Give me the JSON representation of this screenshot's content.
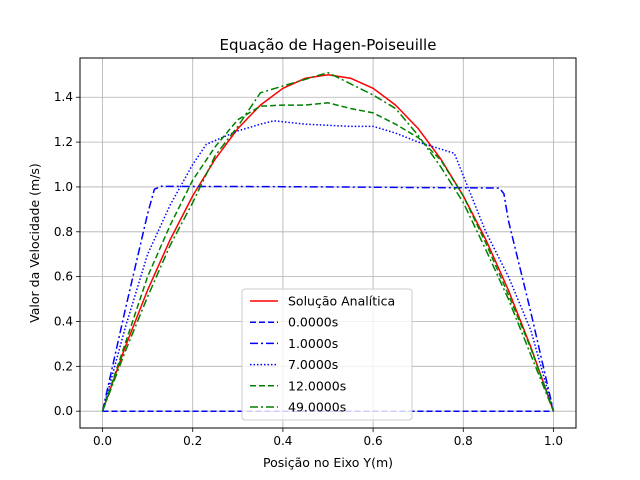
{
  "chart_data": {
    "type": "line",
    "title": "Equação de Hagen-Poiseuille",
    "xlabel": "Posição no Eixo Y(m)",
    "ylabel": "Valor da Velocidade (m/s)",
    "xlim": [
      -0.05,
      1.05
    ],
    "ylim": [
      -0.075,
      1.575
    ],
    "xticks": [
      "0.0",
      "0.2",
      "0.4",
      "0.6",
      "0.8",
      "1.0"
    ],
    "xtick_values": [
      0.0,
      0.2,
      0.4,
      0.6,
      0.8,
      1.0
    ],
    "yticks": [
      "0.0",
      "0.2",
      "0.4",
      "0.6",
      "0.8",
      "1.0",
      "1.2",
      "1.4"
    ],
    "ytick_values": [
      0.0,
      0.2,
      0.4,
      0.6,
      0.8,
      1.0,
      1.2,
      1.4
    ],
    "grid": true,
    "legend_position": "lower-center",
    "series": [
      {
        "name": "Solução Analítica",
        "color": "#ff0000",
        "style": "solid",
        "x": [
          0.0,
          0.05,
          0.1,
          0.15,
          0.2,
          0.25,
          0.3,
          0.35,
          0.4,
          0.45,
          0.5,
          0.55,
          0.6,
          0.65,
          0.7,
          0.75,
          0.8,
          0.85,
          0.9,
          0.95,
          1.0
        ],
        "y": [
          0.0,
          0.285,
          0.54,
          0.765,
          0.96,
          1.125,
          1.26,
          1.365,
          1.44,
          1.485,
          1.5,
          1.485,
          1.44,
          1.365,
          1.26,
          1.125,
          0.96,
          0.765,
          0.54,
          0.285,
          0.0
        ]
      },
      {
        "name": "0.0000s",
        "color": "#0000ff",
        "style": "dashed",
        "x": [
          0.0,
          1.0
        ],
        "y": [
          0.0,
          0.0
        ]
      },
      {
        "name": "1.0000s",
        "color": "#0000ff",
        "style": "dashdot",
        "x": [
          0.0,
          0.05,
          0.1,
          0.115,
          0.13,
          0.2,
          0.3,
          0.4,
          0.5,
          0.6,
          0.7,
          0.8,
          0.88,
          0.89,
          0.9,
          0.95,
          1.0
        ],
        "y": [
          0.0,
          0.45,
          0.88,
          0.99,
          1.003,
          1.002,
          1.002,
          1.001,
          1.0,
          0.999,
          0.997,
          0.996,
          0.995,
          0.97,
          0.85,
          0.44,
          0.0
        ]
      },
      {
        "name": "7.0000s",
        "color": "#0000ff",
        "style": "dotted",
        "x": [
          0.0,
          0.05,
          0.1,
          0.15,
          0.2,
          0.23,
          0.3,
          0.35,
          0.38,
          0.45,
          0.5,
          0.55,
          0.6,
          0.65,
          0.7,
          0.78,
          0.8,
          0.85,
          0.9,
          0.95,
          1.0
        ],
        "y": [
          0.0,
          0.37,
          0.7,
          0.92,
          1.1,
          1.19,
          1.25,
          1.28,
          1.295,
          1.28,
          1.275,
          1.27,
          1.27,
          1.24,
          1.2,
          1.15,
          1.05,
          0.8,
          0.6,
          0.36,
          0.0
        ]
      },
      {
        "name": "12.0000s",
        "color": "#008000",
        "style": "dashed",
        "x": [
          0.0,
          0.05,
          0.1,
          0.15,
          0.2,
          0.25,
          0.3,
          0.35,
          0.4,
          0.45,
          0.5,
          0.55,
          0.6,
          0.65,
          0.7,
          0.75,
          0.8,
          0.85,
          0.9,
          0.95,
          1.0
        ],
        "y": [
          0.0,
          0.3,
          0.6,
          0.83,
          1.03,
          1.18,
          1.3,
          1.36,
          1.365,
          1.365,
          1.375,
          1.35,
          1.33,
          1.28,
          1.22,
          1.12,
          0.96,
          0.75,
          0.52,
          0.28,
          0.0
        ]
      },
      {
        "name": "49.0000s",
        "color": "#008000",
        "style": "dashdot",
        "x": [
          0.0,
          0.05,
          0.1,
          0.15,
          0.2,
          0.25,
          0.3,
          0.35,
          0.4,
          0.45,
          0.5,
          0.55,
          0.6,
          0.65,
          0.7,
          0.75,
          0.8,
          0.85,
          0.9,
          0.95,
          1.0
        ],
        "y": [
          0.0,
          0.265,
          0.51,
          0.74,
          0.93,
          1.14,
          1.27,
          1.42,
          1.45,
          1.48,
          1.51,
          1.46,
          1.41,
          1.35,
          1.23,
          1.09,
          0.93,
          0.72,
          0.5,
          0.25,
          0.0
        ]
      }
    ]
  }
}
